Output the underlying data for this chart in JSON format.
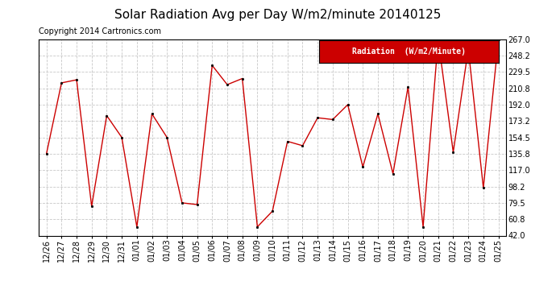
{
  "title": "Solar Radiation Avg per Day W/m2/minute 20140125",
  "copyright": "Copyright 2014 Cartronics.com",
  "legend_label": "Radiation  (W/m2/Minute)",
  "dates": [
    "12/26",
    "12/27",
    "12/28",
    "12/29",
    "12/30",
    "12/31",
    "01/01",
    "01/02",
    "01/03",
    "01/04",
    "01/05",
    "01/06",
    "01/07",
    "01/08",
    "01/09",
    "01/10",
    "01/11",
    "01/12",
    "01/13",
    "01/14",
    "01/15",
    "01/16",
    "01/17",
    "01/18",
    "01/19",
    "01/20",
    "01/21",
    "01/22",
    "01/23",
    "01/24",
    "01/25"
  ],
  "values": [
    135.8,
    217.0,
    220.5,
    75.5,
    179.5,
    154.5,
    52.0,
    181.5,
    154.5,
    79.5,
    77.5,
    237.0,
    215.0,
    222.0,
    52.0,
    70.0,
    150.0,
    145.0,
    177.0,
    175.0,
    192.0,
    120.5,
    181.5,
    113.0,
    212.5,
    52.0,
    267.0,
    137.5,
    256.0,
    96.5,
    267.0
  ],
  "ylim": [
    42.0,
    267.0
  ],
  "yticks": [
    42.0,
    60.8,
    79.5,
    98.2,
    117.0,
    135.8,
    154.5,
    173.2,
    192.0,
    210.8,
    229.5,
    248.2,
    267.0
  ],
  "line_color": "#cc0000",
  "marker_color": "#000000",
  "bg_color": "#ffffff",
  "grid_color": "#c8c8c8",
  "title_fontsize": 11,
  "copyright_fontsize": 7,
  "tick_fontsize": 7,
  "legend_bg": "#cc0000",
  "legend_text_color": "#ffffff",
  "legend_fontsize": 7
}
